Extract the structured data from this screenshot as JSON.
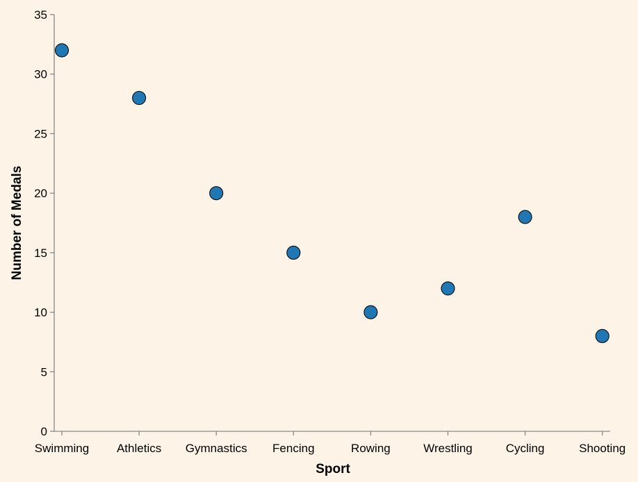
{
  "chart_data": {
    "type": "scatter",
    "title": "",
    "xlabel": "Sport",
    "ylabel": "Number of Medals",
    "categories": [
      "Swimming",
      "Athletics",
      "Gymnastics",
      "Fencing",
      "Rowing",
      "Wrestling",
      "Cycling",
      "Shooting"
    ],
    "values": [
      32,
      28,
      20,
      15,
      10,
      12,
      18,
      8
    ],
    "ylim": [
      0,
      35
    ],
    "yticks": [
      0,
      5,
      10,
      15,
      20,
      25,
      30,
      35
    ],
    "grid": false,
    "legend": "none",
    "colors": {
      "point": "#1f77b4",
      "point_stroke": "#0b0b0b",
      "background": "#fdf3e6",
      "axis": "#888888"
    }
  }
}
